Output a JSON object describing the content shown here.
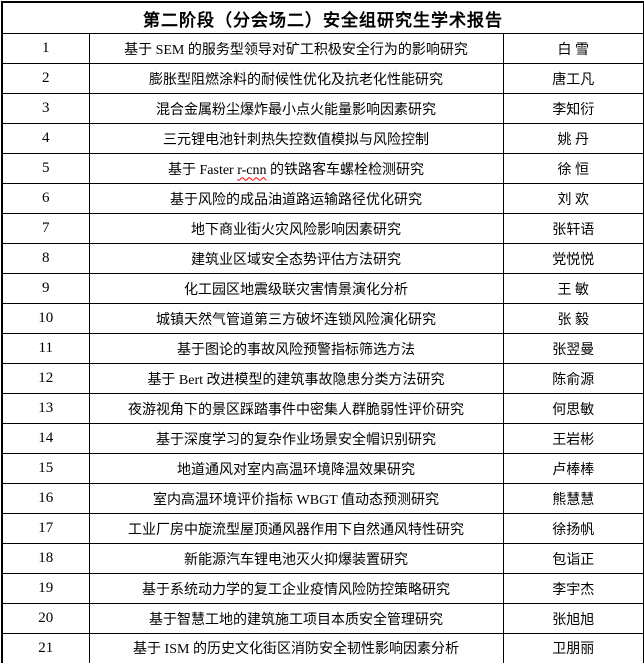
{
  "colors": {
    "background": "#ffffff",
    "border": "#000000",
    "text": "#000000",
    "spell_error_underline": "#ff0000"
  },
  "table": {
    "title": "第二阶段（分会场二）安全组研究生学术报告",
    "rows": [
      {
        "no": "1",
        "title": "基于 SEM 的服务型领导对矿工积极安全行为的影响研究",
        "name": "白 雪"
      },
      {
        "no": "2",
        "title": "膨胀型阻燃涂料的耐候性优化及抗老化性能研究",
        "name": "唐工凡"
      },
      {
        "no": "3",
        "title": "混合金属粉尘爆炸最小点火能量影响因素研究",
        "name": "李知衍"
      },
      {
        "no": "4",
        "title": "三元锂电池针刺热失控数值模拟与风险控制",
        "name": "姚 丹"
      },
      {
        "no": "5",
        "title": "基于 Faster r-cnn 的铁路客车螺栓检测研究",
        "name": "徐 恒",
        "wavy": "r-cnn"
      },
      {
        "no": "6",
        "title": "基于风险的成品油道路运输路径优化研究",
        "name": "刘 欢"
      },
      {
        "no": "7",
        "title": "地下商业街火灾风险影响因素研究",
        "name": "张轩语"
      },
      {
        "no": "8",
        "title": "建筑业区域安全态势评估方法研究",
        "name": "党悦悦"
      },
      {
        "no": "9",
        "title": "化工园区地震级联灾害情景演化分析",
        "name": "王 敏"
      },
      {
        "no": "10",
        "title": "城镇天然气管道第三方破坏连锁风险演化研究",
        "name": "张 毅"
      },
      {
        "no": "11",
        "title": "基于图论的事故风险预警指标筛选方法",
        "name": "张翌曼"
      },
      {
        "no": "12",
        "title": "基于 Bert 改进模型的建筑事故隐患分类方法研究",
        "name": "陈俞源"
      },
      {
        "no": "13",
        "title": "夜游视角下的景区踩踏事件中密集人群脆弱性评价研究",
        "name": "何思敏"
      },
      {
        "no": "14",
        "title": "基于深度学习的复杂作业场景安全帽识别研究",
        "name": "王岩彬"
      },
      {
        "no": "15",
        "title": "地道通风对室内高温环境降温效果研究",
        "name": "卢棒棒"
      },
      {
        "no": "16",
        "title": "室内高温环境评价指标 WBGT 值动态预测研究",
        "name": "熊慧慧"
      },
      {
        "no": "17",
        "title": "工业厂房中旋流型屋顶通风器作用下自然通风特性研究",
        "name": "徐扬帆"
      },
      {
        "no": "18",
        "title": "新能源汽车锂电池灭火抑爆装置研究",
        "name": "包诣正"
      },
      {
        "no": "19",
        "title": "基于系统动力学的复工企业疫情风险防控策略研究",
        "name": "李宇杰"
      },
      {
        "no": "20",
        "title": "基于智慧工地的建筑施工项目本质安全管理研究",
        "name": "张旭旭"
      },
      {
        "no": "21",
        "title": "基于 ISM 的历史文化街区消防安全韧性影响因素分析",
        "name": "卫朋丽"
      }
    ]
  }
}
